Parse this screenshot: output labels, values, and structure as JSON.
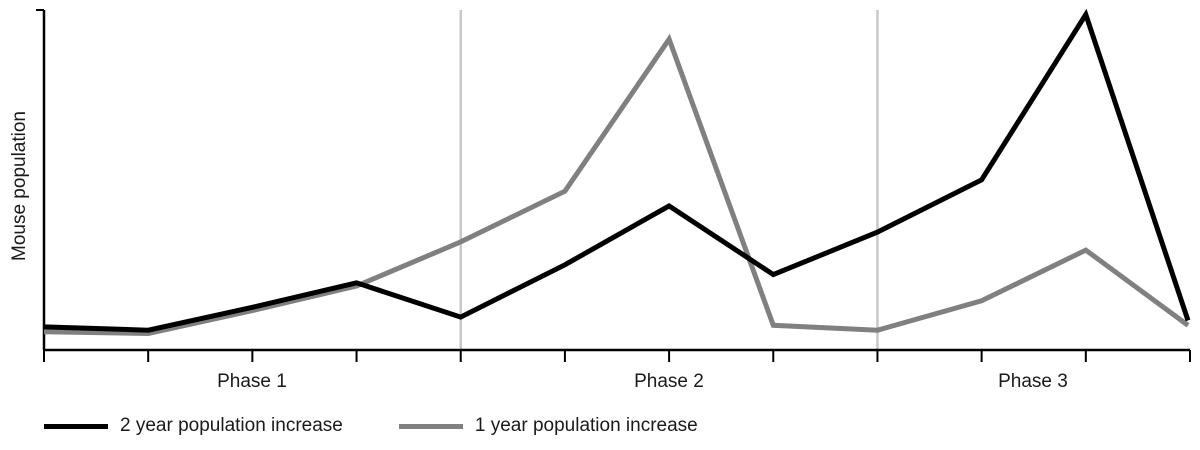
{
  "chart_data": {
    "type": "line",
    "title": "",
    "xlabel": "",
    "ylabel": "Mouse population",
    "ylim": [
      0,
      100
    ],
    "grid": false,
    "legend_position": "bottom-left",
    "phases": [
      "Phase 1",
      "Phase 2",
      "Phase 3"
    ],
    "x": [
      0,
      1,
      2,
      3,
      4,
      5,
      6,
      7,
      8,
      9,
      10,
      11
    ],
    "series": [
      {
        "name": "2 year population increase",
        "color": "#000000",
        "values": [
          4,
          3,
          10,
          17.5,
          7,
          23,
          41,
          20,
          33,
          49,
          99.5,
          6
        ]
      },
      {
        "name": "1 year population increase",
        "color": "#808080",
        "values": [
          2.5,
          2,
          9,
          16.5,
          30,
          45.5,
          92,
          4.5,
          3,
          12,
          27.5,
          4.5
        ]
      }
    ]
  }
}
